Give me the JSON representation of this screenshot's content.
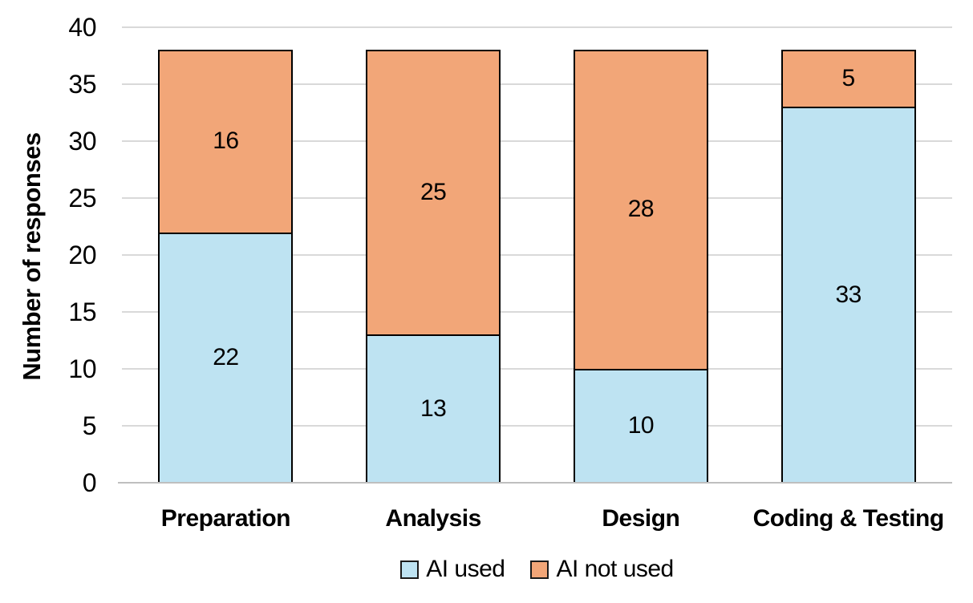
{
  "chart_data": {
    "type": "bar",
    "stacked": true,
    "title": "",
    "categories": [
      "Preparation",
      "Analysis",
      "Design",
      "Coding & Testing"
    ],
    "series": [
      {
        "name": "AI used",
        "color": "#BEE3F2",
        "values": [
          22,
          13,
          10,
          33
        ]
      },
      {
        "name": "AI not used",
        "color": "#F2A678",
        "values": [
          16,
          25,
          28,
          5
        ]
      }
    ],
    "totals": [
      38,
      38,
      38,
      38
    ],
    "xlabel": "",
    "ylabel": "Number of responses",
    "ylim": [
      0,
      40
    ],
    "yticks": [
      0,
      5,
      10,
      15,
      20,
      25,
      30,
      35,
      40
    ],
    "grid": "horizontal",
    "legend_position": "bottom",
    "style": {
      "gridline_color": "#d9d9d9",
      "axis_line_color": "#bfbfbf",
      "bar_border_color": "#000000",
      "text_color": "#000000",
      "background_color": "#ffffff"
    }
  }
}
